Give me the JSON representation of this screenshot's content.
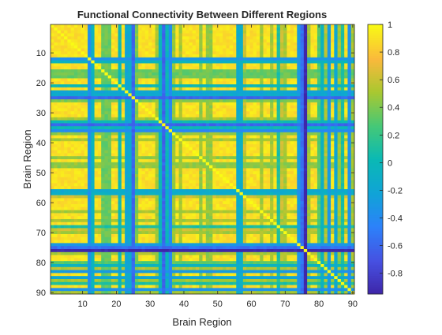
{
  "chart_data": {
    "type": "heatmap",
    "title": "Functional Connectivity Between Different Regions",
    "xlabel": "Brain Region",
    "ylabel": "Brain Region",
    "n_regions": 90,
    "xlim": [
      0.5,
      90.5
    ],
    "ylim": [
      0.5,
      90.5
    ],
    "y_direction": "reversed",
    "xticks": [
      10,
      20,
      30,
      40,
      50,
      60,
      70,
      80,
      90
    ],
    "yticks": [
      10,
      20,
      30,
      40,
      50,
      60,
      70,
      80,
      90
    ],
    "colormap": "parula",
    "color_range": [
      -0.95,
      1
    ],
    "colorbar": {
      "ticks": [
        1,
        0.8,
        0.6,
        0.4,
        0.2,
        0,
        -0.2,
        -0.4,
        -0.6,
        -0.8
      ],
      "tick_labels": [
        "1",
        "0.8",
        "0.6",
        "0.4",
        "0.2",
        "0",
        "-0.2",
        "-0.4",
        "-0.6",
        "-0.8"
      ],
      "location": "right"
    },
    "diagonal_value": 1,
    "baseline_value": 0.9,
    "region_profile": [
      {
        "region": 12,
        "value": -0.35
      },
      {
        "region": 13,
        "value": -0.05
      },
      {
        "region": 16,
        "value": 0.35
      },
      {
        "region": 17,
        "value": 0.35
      },
      {
        "region": 18,
        "value": 0.35
      },
      {
        "region": 21,
        "value": 0.0
      },
      {
        "region": 23,
        "value": -0.2
      },
      {
        "region": 24,
        "value": -0.15
      },
      {
        "region": 25,
        "value": -0.6
      },
      {
        "region": 26,
        "value": 0.4
      },
      {
        "region": 32,
        "value": 0.5
      },
      {
        "region": 33,
        "value": 0.0
      },
      {
        "region": 34,
        "value": -0.6
      },
      {
        "region": 35,
        "value": 0.0
      },
      {
        "region": 36,
        "value": -0.4
      },
      {
        "region": 37,
        "value": 0.45
      },
      {
        "region": 39,
        "value": 0.5
      },
      {
        "region": 45,
        "value": 0.45
      },
      {
        "region": 47,
        "value": 0.45
      },
      {
        "region": 48,
        "value": 0.45
      },
      {
        "region": 56,
        "value": -0.15
      },
      {
        "region": 57,
        "value": -0.1
      },
      {
        "region": 58,
        "value": 0.6
      },
      {
        "region": 63,
        "value": 0.5
      },
      {
        "region": 66,
        "value": 0.5
      },
      {
        "region": 68,
        "value": 0.1
      },
      {
        "region": 69,
        "value": 0.6
      },
      {
        "region": 70,
        "value": 0.5
      },
      {
        "region": 74,
        "value": -0.3
      },
      {
        "region": 75,
        "value": -0.55
      },
      {
        "region": 76,
        "value": -0.95
      },
      {
        "region": 77,
        "value": 0.5
      },
      {
        "region": 80,
        "value": 0.3
      },
      {
        "region": 81,
        "value": -0.05
      },
      {
        "region": 82,
        "value": 0.55
      },
      {
        "region": 83,
        "value": -0.3
      },
      {
        "region": 85,
        "value": -0.2
      },
      {
        "region": 86,
        "value": 0.5
      },
      {
        "region": 87,
        "value": 0.1
      },
      {
        "region": 89,
        "value": -0.35
      },
      {
        "region": 90,
        "value": 0.5
      }
    ],
    "grid": false
  }
}
